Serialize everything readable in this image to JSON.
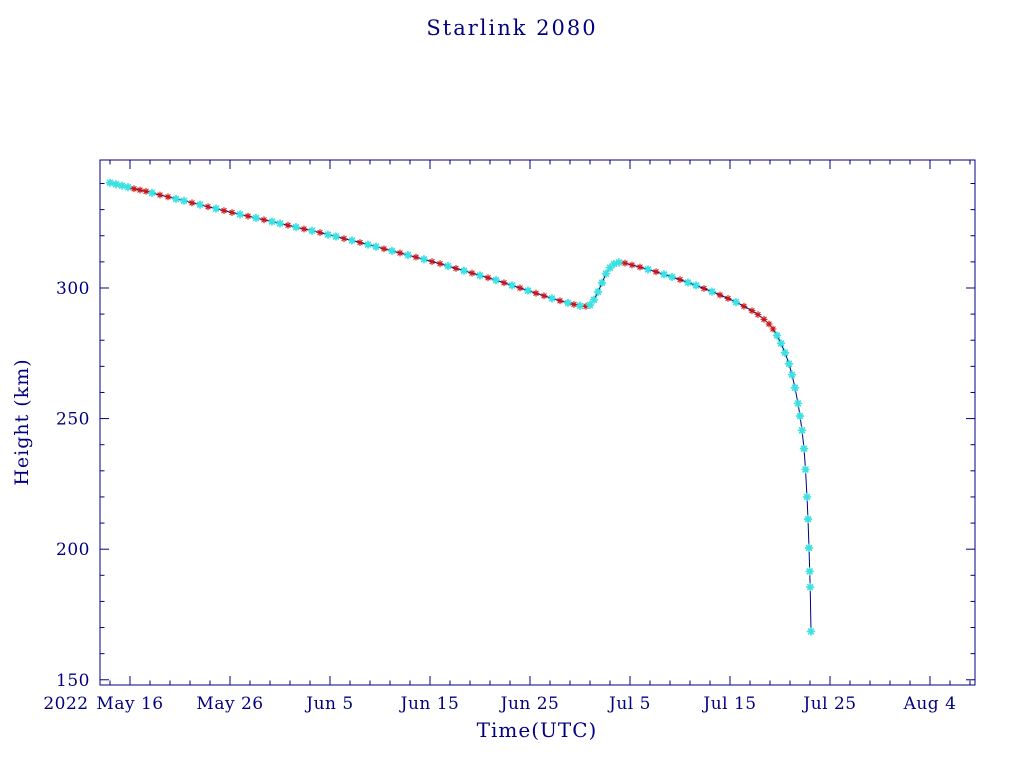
{
  "page": {
    "background": "#ffffff",
    "text_color": "#000080"
  },
  "chart_data": {
    "type": "line",
    "title": "Starlink 2080",
    "xlabel": "Time(UTC)",
    "ylabel": "Height (km)",
    "grid": false,
    "legend": "none",
    "x_axis": {
      "year_label": "2022",
      "unit": "days since 2022 May 13",
      "domain": [
        0,
        87.5
      ],
      "minor_step": 2,
      "ticks": [
        {
          "day": 3,
          "label": "May 16"
        },
        {
          "day": 13,
          "label": "May 26"
        },
        {
          "day": 23,
          "label": "Jun 5"
        },
        {
          "day": 33,
          "label": "Jun 15"
        },
        {
          "day": 43,
          "label": "Jun 25"
        },
        {
          "day": 53,
          "label": "Jul 5"
        },
        {
          "day": 63,
          "label": "Jul 15"
        },
        {
          "day": 73,
          "label": "Jul 25"
        },
        {
          "day": 83,
          "label": "Aug 4"
        }
      ]
    },
    "y_axis": {
      "domain": [
        148,
        349
      ],
      "ticks": [
        150,
        200,
        250,
        300
      ],
      "minor_step": 10,
      "minor_range": [
        150,
        340
      ]
    },
    "trajectory": {
      "line_color": "#000080",
      "marker_colors": {
        "r": "#c81414",
        "c": "#3ce1e1"
      },
      "points": [
        [
          1.0,
          340.3,
          "c"
        ],
        [
          1.6,
          339.7,
          "c"
        ],
        [
          2.2,
          339.2,
          "c"
        ],
        [
          2.8,
          338.6,
          "c"
        ],
        [
          3.4,
          338.0,
          "r"
        ],
        [
          4.0,
          337.5,
          "r"
        ],
        [
          4.6,
          337.0,
          "r"
        ],
        [
          5.2,
          336.4,
          "c"
        ],
        [
          6.0,
          335.6,
          "r"
        ],
        [
          6.8,
          334.9,
          "r"
        ],
        [
          7.6,
          334.1,
          "c"
        ],
        [
          8.4,
          333.4,
          "c"
        ],
        [
          9.2,
          332.6,
          "r"
        ],
        [
          10.0,
          331.9,
          "c"
        ],
        [
          10.8,
          331.1,
          "r"
        ],
        [
          11.6,
          330.4,
          "c"
        ],
        [
          12.4,
          329.6,
          "r"
        ],
        [
          13.2,
          328.9,
          "r"
        ],
        [
          14.0,
          328.2,
          "c"
        ],
        [
          14.8,
          327.5,
          "r"
        ],
        [
          15.6,
          326.8,
          "c"
        ],
        [
          16.4,
          326.1,
          "r"
        ],
        [
          17.2,
          325.4,
          "c"
        ],
        [
          18.0,
          324.7,
          "c"
        ],
        [
          18.8,
          324.0,
          "r"
        ],
        [
          19.6,
          323.3,
          "c"
        ],
        [
          20.4,
          322.6,
          "r"
        ],
        [
          21.2,
          321.9,
          "c"
        ],
        [
          22.0,
          321.2,
          "r"
        ],
        [
          22.8,
          320.4,
          "c"
        ],
        [
          23.6,
          319.7,
          "c"
        ],
        [
          24.4,
          318.9,
          "r"
        ],
        [
          25.2,
          318.2,
          "c"
        ],
        [
          26.0,
          317.4,
          "r"
        ],
        [
          26.8,
          316.6,
          "c"
        ],
        [
          27.6,
          315.8,
          "c"
        ],
        [
          28.4,
          315.0,
          "r"
        ],
        [
          29.2,
          314.2,
          "c"
        ],
        [
          30.0,
          313.4,
          "r"
        ],
        [
          30.8,
          312.6,
          "c"
        ],
        [
          31.6,
          311.8,
          "r"
        ],
        [
          32.4,
          311.0,
          "c"
        ],
        [
          33.2,
          310.1,
          "r"
        ],
        [
          34.0,
          309.3,
          "r"
        ],
        [
          34.8,
          308.4,
          "c"
        ],
        [
          35.6,
          307.5,
          "r"
        ],
        [
          36.4,
          306.6,
          "c"
        ],
        [
          37.2,
          305.7,
          "r"
        ],
        [
          38.0,
          304.8,
          "c"
        ],
        [
          38.8,
          303.9,
          "r"
        ],
        [
          39.6,
          303.0,
          "c"
        ],
        [
          40.4,
          302.0,
          "r"
        ],
        [
          41.2,
          301.0,
          "c"
        ],
        [
          42.0,
          300.0,
          "r"
        ],
        [
          42.8,
          299.0,
          "c"
        ],
        [
          43.6,
          298.0,
          "r"
        ],
        [
          44.4,
          297.0,
          "r"
        ],
        [
          45.2,
          296.0,
          "c"
        ],
        [
          46.0,
          295.1,
          "r"
        ],
        [
          46.8,
          294.3,
          "c"
        ],
        [
          47.4,
          293.7,
          "r"
        ],
        [
          48.0,
          293.2,
          "c"
        ],
        [
          48.6,
          293.0,
          "r"
        ],
        [
          49.0,
          293.5,
          "c"
        ],
        [
          49.4,
          295.5,
          "c"
        ],
        [
          49.8,
          298.5,
          "c"
        ],
        [
          50.2,
          302.0,
          "c"
        ],
        [
          50.6,
          305.5,
          "c"
        ],
        [
          51.0,
          307.8,
          "c"
        ],
        [
          51.4,
          309.2,
          "c"
        ],
        [
          51.9,
          309.8,
          "c"
        ],
        [
          52.5,
          309.5,
          "r"
        ],
        [
          53.2,
          308.8,
          "r"
        ],
        [
          54.0,
          308.0,
          "r"
        ],
        [
          54.8,
          307.1,
          "c"
        ],
        [
          55.6,
          306.2,
          "r"
        ],
        [
          56.4,
          305.2,
          "c"
        ],
        [
          57.2,
          304.2,
          "c"
        ],
        [
          58.0,
          303.2,
          "r"
        ],
        [
          58.8,
          302.1,
          "c"
        ],
        [
          59.6,
          301.0,
          "c"
        ],
        [
          60.4,
          299.8,
          "r"
        ],
        [
          61.2,
          298.6,
          "c"
        ],
        [
          62.0,
          297.3,
          "r"
        ],
        [
          62.8,
          296.0,
          "r"
        ],
        [
          63.6,
          294.6,
          "c"
        ],
        [
          64.4,
          293.0,
          "r"
        ],
        [
          65.2,
          291.3,
          "r"
        ],
        [
          65.8,
          289.8,
          "r"
        ],
        [
          66.4,
          288.0,
          "r"
        ],
        [
          66.9,
          286.2,
          "r"
        ],
        [
          67.3,
          284.3,
          "r"
        ],
        [
          67.7,
          281.8,
          "c"
        ],
        [
          68.1,
          278.8,
          "c"
        ],
        [
          68.5,
          275.2,
          "c"
        ],
        [
          68.9,
          271.0,
          "c"
        ],
        [
          69.2,
          266.8,
          "c"
        ],
        [
          69.5,
          261.8,
          "c"
        ],
        [
          69.8,
          255.8,
          "c"
        ],
        [
          70.0,
          251.0,
          "c"
        ],
        [
          70.2,
          245.5,
          "c"
        ],
        [
          70.4,
          238.5,
          "c"
        ],
        [
          70.55,
          230.5,
          "c"
        ],
        [
          70.7,
          220.0,
          "c"
        ],
        [
          70.8,
          211.5,
          "c"
        ],
        [
          70.9,
          200.5,
          "c"
        ],
        [
          70.97,
          191.5,
          "c"
        ],
        [
          71.02,
          185.5,
          "c"
        ],
        [
          71.1,
          168.5,
          "c"
        ]
      ]
    }
  }
}
